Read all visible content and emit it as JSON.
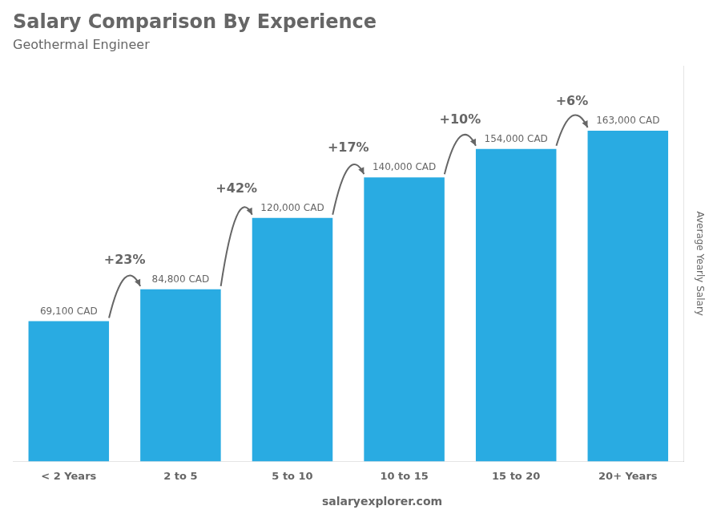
{
  "chart_data": {
    "type": "bar",
    "title": "Salary Comparison By Experience",
    "subtitle": "Geothermal Engineer",
    "ylabel": "Average Yearly Salary",
    "categories": [
      "< 2 Years",
      "2 to 5",
      "5 to 10",
      "10 to 15",
      "15 to 20",
      "20+ Years"
    ],
    "values": [
      69100,
      84800,
      120000,
      140000,
      154000,
      163000
    ],
    "value_labels": [
      "69,100 CAD",
      "84,800 CAD",
      "120,000 CAD",
      "140,000 CAD",
      "154,000 CAD",
      "163,000 CAD"
    ],
    "data_labels": true,
    "color": "#29ABE2",
    "ylim": [
      0,
      195000
    ],
    "grid": false,
    "tick_labels": "x",
    "annotations": [
      "+23%",
      "+42%",
      "+17%",
      "+10%",
      "+6%"
    ],
    "footer": [
      "salary",
      "explorer.com"
    ]
  }
}
